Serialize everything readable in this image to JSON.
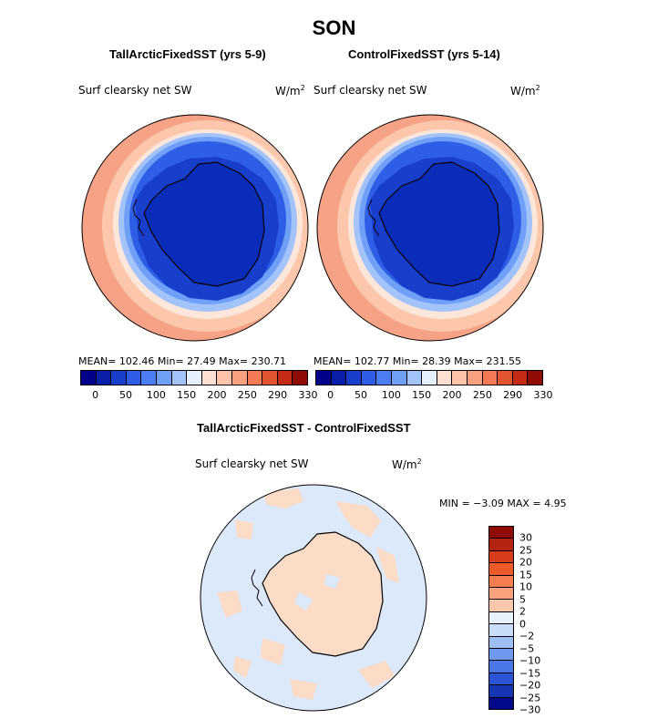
{
  "title": "SON",
  "panels": [
    {
      "subtitle": "TallArcticFixedSST (yrs 5-9)",
      "variable": "Surf clearsky net SW",
      "units_base": "W/m",
      "units_exp": "2",
      "stats": "MEAN= 102.46   Min=   27.49   Max= 230.71",
      "colorbar_labels": [
        "0",
        "50",
        "100",
        "150",
        "200",
        "250",
        "290",
        "330"
      ]
    },
    {
      "subtitle": "ControlFixedSST (yrs 5-14)",
      "variable": "Surf clearsky net SW",
      "units_base": "W/m",
      "units_exp": "2",
      "stats": "MEAN= 102.77   Min=   28.39   Max= 231.55",
      "colorbar_labels": [
        "0",
        "50",
        "100",
        "150",
        "200",
        "250",
        "290",
        "330"
      ]
    }
  ],
  "diff_panel": {
    "subtitle": "TallArcticFixedSST - ControlFixedSST",
    "variable": "Surf clearsky net SW",
    "units_base": "W/m",
    "units_exp": "2",
    "stats": "MIN =  −3.09 MAX =    4.95",
    "colorbar_labels": [
      "30",
      "25",
      "20",
      "15",
      "10",
      "5",
      "2",
      "0",
      "−2",
      "−5",
      "−10",
      "−15",
      "−20",
      "−25",
      "−30"
    ]
  },
  "colors": {
    "seq": [
      "#00008b",
      "#0a1fa8",
      "#1a3ecc",
      "#2f5de6",
      "#4a7ef2",
      "#6f9ff6",
      "#a3c4fa",
      "#e6f0fc",
      "#fde0d2",
      "#fcc3a8",
      "#f9a17f",
      "#f37a55",
      "#e4532f",
      "#c42a14",
      "#8e0c04"
    ],
    "diff": [
      "#8e0c04",
      "#b52410",
      "#d83c1a",
      "#ef5a2b",
      "#f57c4f",
      "#f9a27d",
      "#fcc7ab",
      "#e8f2fc",
      "#c9ddf8",
      "#9dbff5",
      "#6f99ef",
      "#4a76e6",
      "#2b53d6",
      "#1635b3",
      "#020a8a"
    ]
  }
}
